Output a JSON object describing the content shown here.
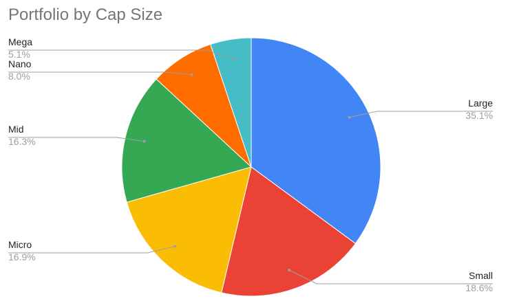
{
  "chart_data": {
    "type": "pie",
    "title": "Portfolio by Cap Size",
    "start_angle_deg": 0,
    "direction": "clockwise",
    "slices": [
      {
        "label": "Large",
        "value": 35.1,
        "display": "35.1%",
        "color": "#4285f4",
        "label_side": "right"
      },
      {
        "label": "Small",
        "value": 18.6,
        "display": "18.6%",
        "color": "#ea4335",
        "label_side": "right"
      },
      {
        "label": "Micro",
        "value": 16.9,
        "display": "16.9%",
        "color": "#fbbc04",
        "label_side": "left"
      },
      {
        "label": "Mid",
        "value": 16.3,
        "display": "16.3%",
        "color": "#34a853",
        "label_side": "left"
      },
      {
        "label": "Nano",
        "value": 8.0,
        "display": "8.0%",
        "color": "#ff6d01",
        "label_side": "left"
      },
      {
        "label": "Mega",
        "value": 5.1,
        "display": "5.1%",
        "color": "#46bdc6",
        "label_side": "left"
      }
    ],
    "legend": "none (leader-line labels)"
  }
}
